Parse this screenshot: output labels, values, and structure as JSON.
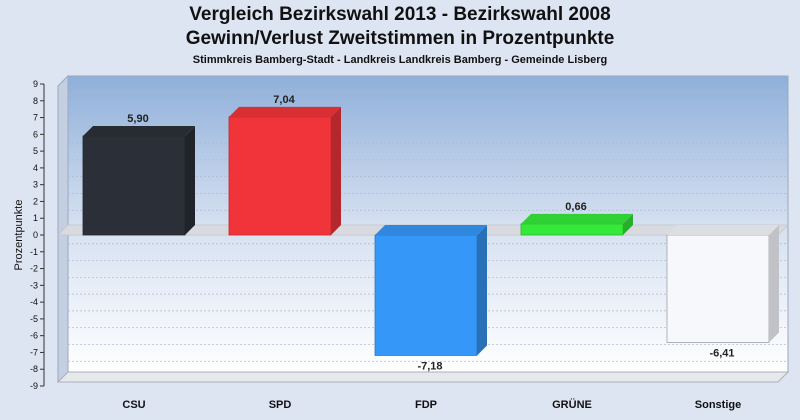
{
  "header": {
    "title_line1": "Vergleich Bezirkswahl 2013 - Bezirkswahl 2008",
    "title_line2": "Gewinn/Verlust Zweitstimmen in Prozentpunkte",
    "subtitle": "Stimmkreis Bamberg-Stadt - Landkreis Landkreis Bamberg - Gemeinde Lisberg"
  },
  "chart_data": {
    "type": "bar",
    "title": "Vergleich Bezirkswahl 2013 - Bezirkswahl 2008 / Gewinn/Verlust Zweitstimmen in Prozentpunkte",
    "subtitle": "Stimmkreis Bamberg-Stadt - Landkreis Landkreis Bamberg - Gemeinde Lisberg",
    "ylabel": "Prozentpunkte",
    "xlabel": "",
    "ylim": [
      -9,
      9
    ],
    "yticks": [
      "9",
      "8",
      "7",
      "6",
      "5",
      "4",
      "3",
      "2",
      "1",
      "0",
      "-1",
      "-2",
      "-3",
      "-4",
      "-5",
      "-6",
      "-7",
      "-8",
      "-9"
    ],
    "categories": [
      "CSU",
      "SPD",
      "FDP",
      "GRÜNE",
      "Sonstige"
    ],
    "values": [
      5.9,
      7.04,
      -7.18,
      0.66,
      -6.41
    ],
    "value_labels": [
      "5,90",
      "7,04",
      "-7,18",
      "0,66",
      "-6,41"
    ],
    "colors": [
      "#2b3038",
      "#f0343a",
      "#3597f7",
      "#35e83a",
      "#f7f8fb"
    ],
    "grid": true,
    "legend": "none"
  }
}
